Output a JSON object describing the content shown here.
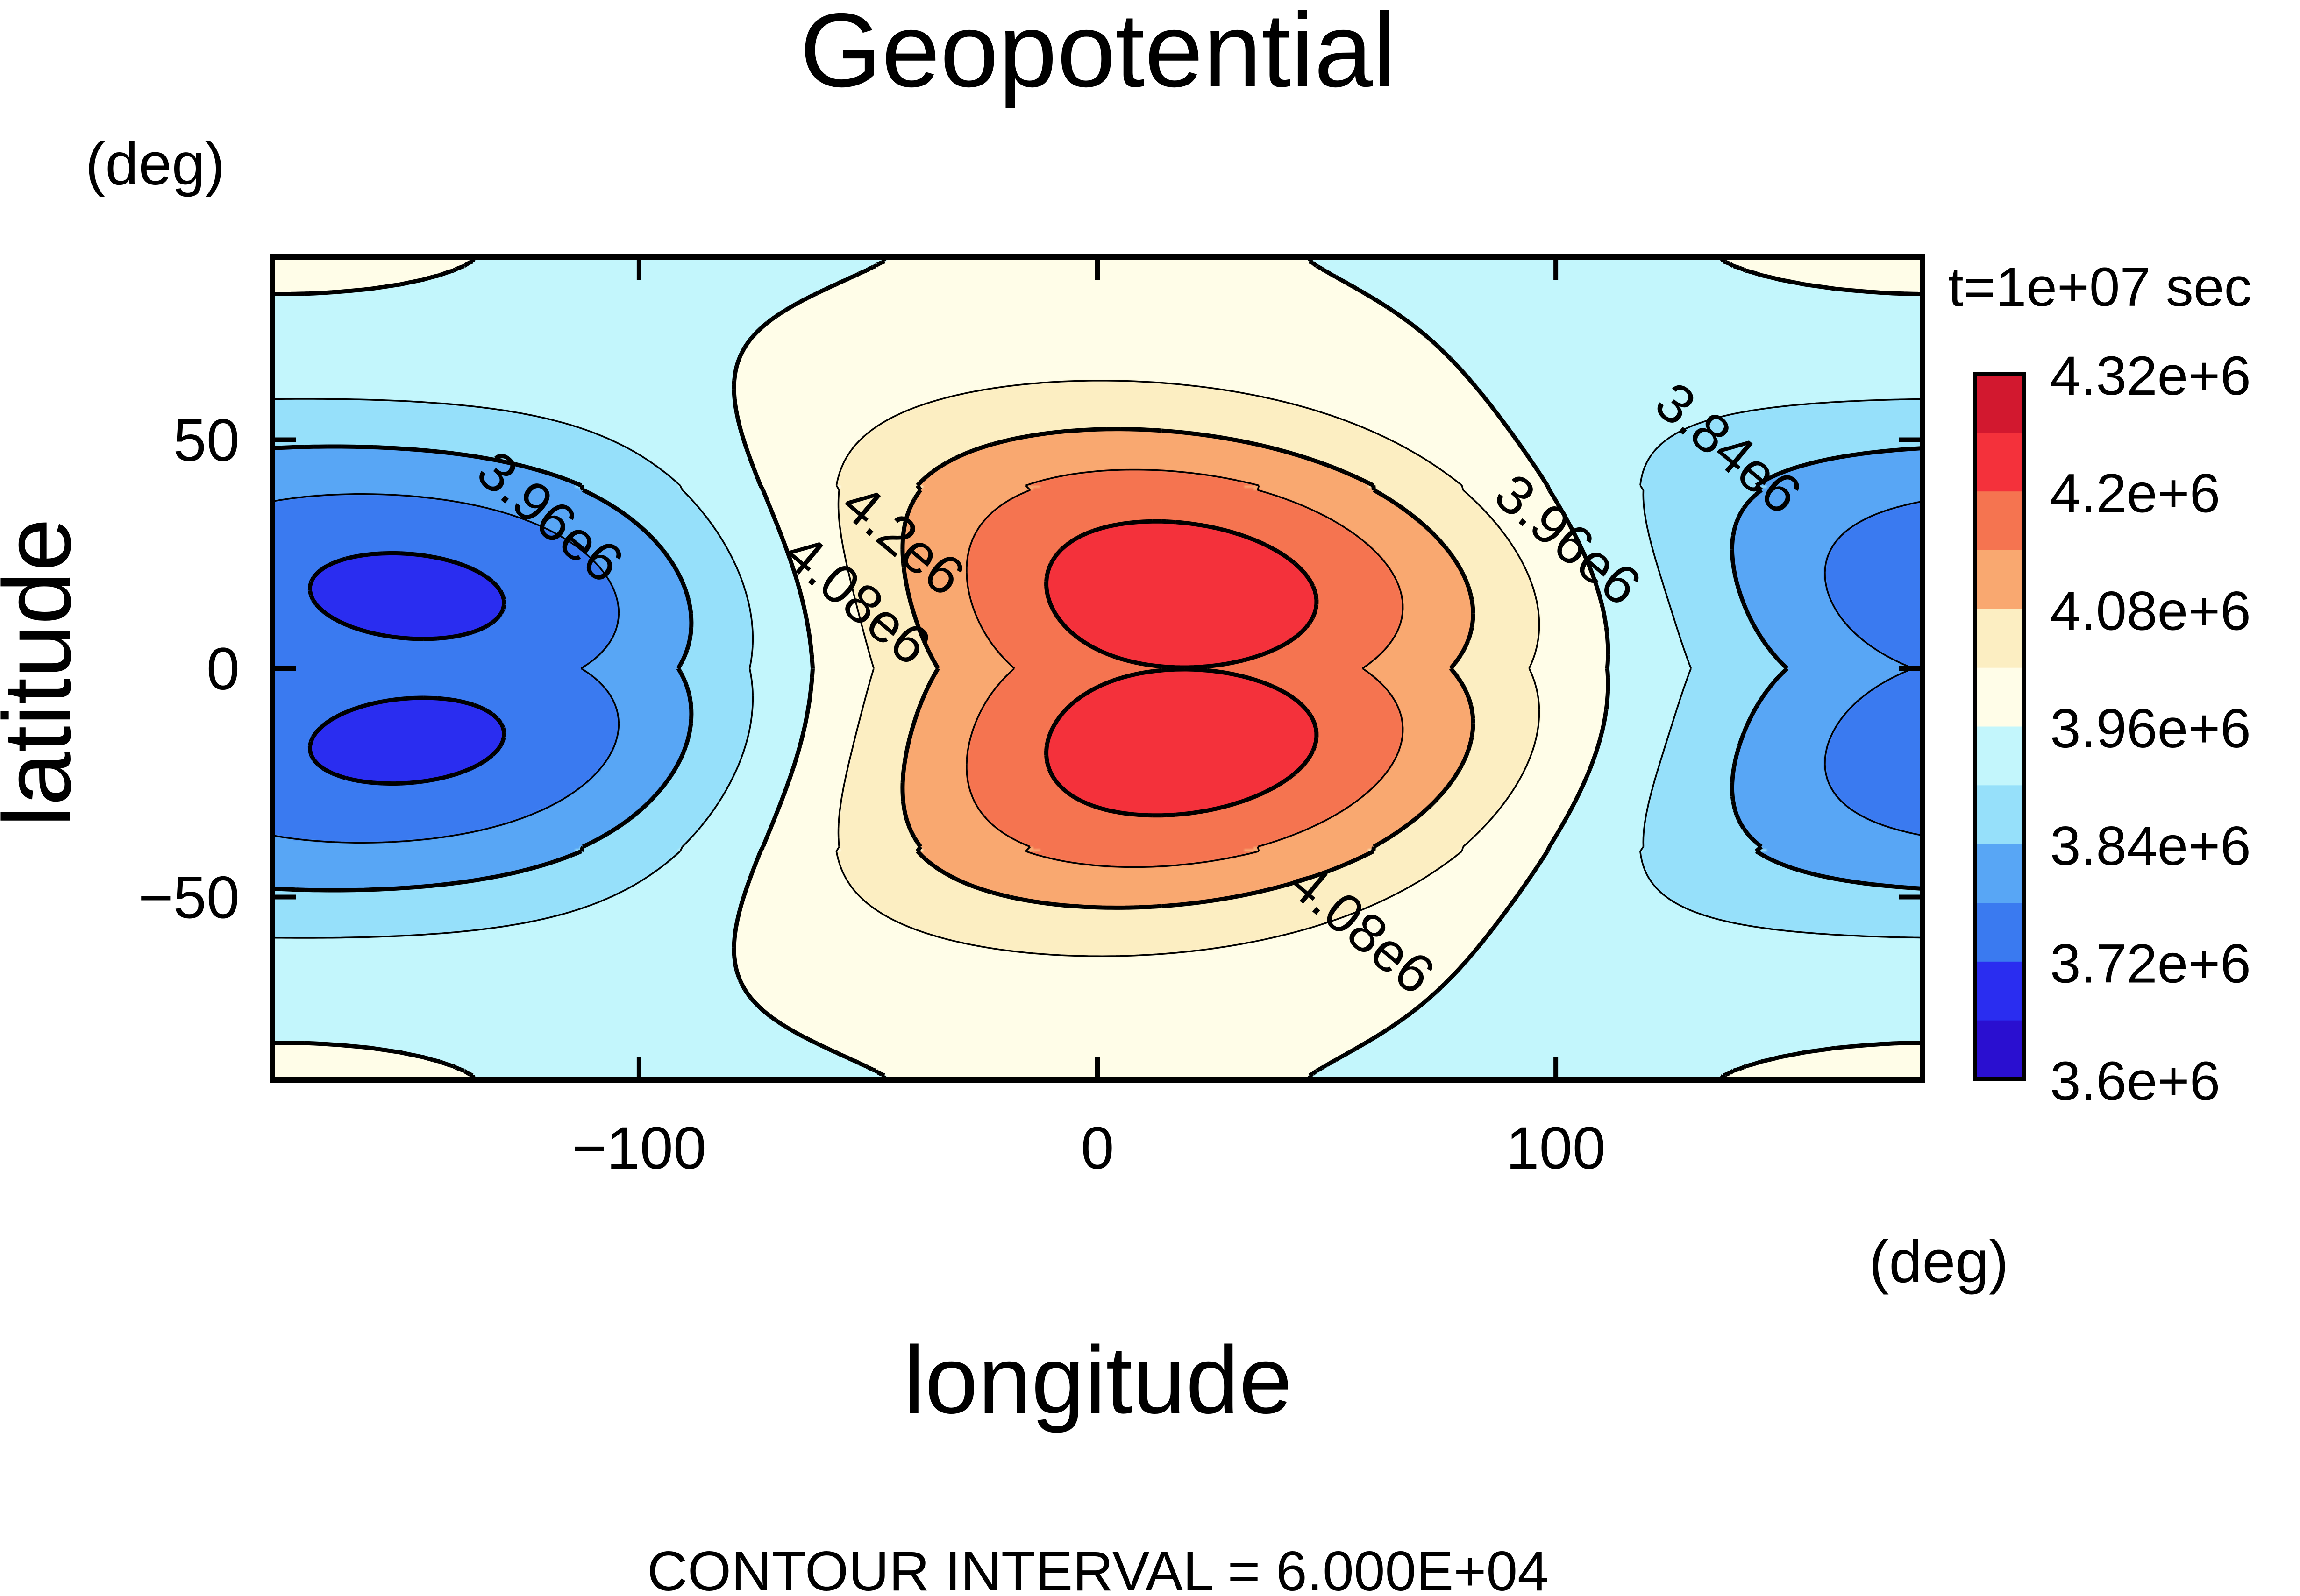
{
  "chart_data": {
    "type": "heatmap",
    "subtype": "filled-contour",
    "title": "Geopotential",
    "xlabel": "longitude",
    "ylabel": "latitude",
    "xunit": "(deg)",
    "yunit": "(deg)",
    "time_label": "t=1e+07 sec",
    "footer": "CONTOUR INTERVAL = 6.000E+04",
    "xlim": [
      -180,
      180
    ],
    "ylim": [
      -90,
      90
    ],
    "x_ticks": [
      -100,
      0,
      100
    ],
    "x_tick_labels": [
      "−100",
      "0",
      "100"
    ],
    "y_ticks": [
      -50,
      0,
      50
    ],
    "y_tick_labels": [
      "−50",
      "0",
      "50"
    ],
    "colorbar": {
      "levels": [
        3600000.0,
        3660000.0,
        3720000.0,
        3780000.0,
        3840000.0,
        3900000.0,
        3960000.0,
        4020000.0,
        4080000.0,
        4140000.0,
        4200000.0,
        4260000.0,
        4320000.0
      ],
      "labels": [
        "4.32e+6",
        "4.2e+6",
        "4.08e+6",
        "3.96e+6",
        "3.84e+6",
        "3.72e+6",
        "3.6e+6"
      ],
      "colors": [
        "#2a0fd0",
        "#2a2df0",
        "#3a7af0",
        "#58a6f5",
        "#96e0fa",
        "#c3f6fc",
        "#fffde8",
        "#fceec2",
        "#f9a870",
        "#f57450",
        "#f4313b",
        "#d2182f"
      ]
    },
    "field": {
      "description_values": "geopotential in m2/s2; maximum near lon 0, lat 0 (~4.32e6), minima near lon ±180, lat ±20 (~3.6e6)",
      "max_value": 4320000.0,
      "min_value": 3600000.0
    },
    "contour_labels": [
      {
        "text": "3.96e6",
        "lon": -122,
        "lat": 30
      },
      {
        "text": "4.2e6",
        "lon": -45,
        "lat": 25
      },
      {
        "text": "4.08e6",
        "lon": -55,
        "lat": 12
      },
      {
        "text": "3.96e6",
        "lon": 100,
        "lat": 25
      },
      {
        "text": "3.84e6",
        "lon": 135,
        "lat": 45
      },
      {
        "text": "4.08e6",
        "lon": 55,
        "lat": -60
      }
    ]
  }
}
